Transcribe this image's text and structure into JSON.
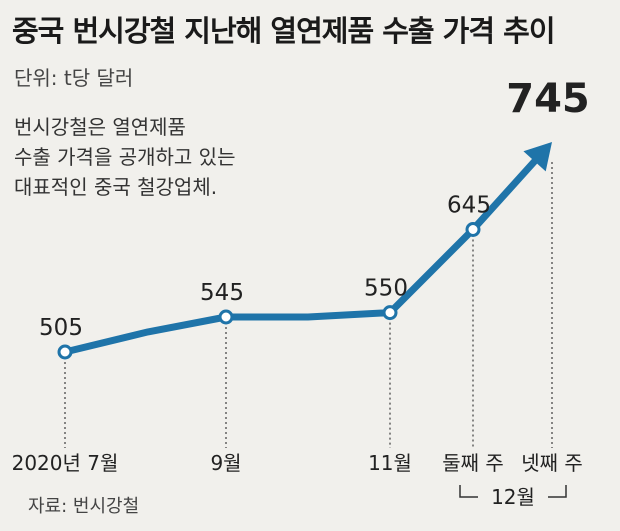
{
  "header": {
    "title": "중국 번시강철 지난해 열연제품 수출 가격 추이",
    "unit": "단위: t당 달러"
  },
  "note": {
    "lines": [
      "번시강철은 열연제품",
      "수출 가격을 공개하고 있는",
      "대표적인 중국 철강업체."
    ]
  },
  "footer": {
    "source": "자료: 번시강철"
  },
  "chart_data": {
    "type": "line",
    "title": "중국 번시강철 지난해 열연제품 수출 가격 추이",
    "unit": "t당 달러",
    "points": [
      {
        "label": "2020년 7월",
        "value": 505,
        "marked": true
      },
      {
        "label": "",
        "value": 528,
        "marked": false
      },
      {
        "label": "9월",
        "value": 545,
        "marked": true
      },
      {
        "label": "",
        "value": 545,
        "marked": false
      },
      {
        "label": "11월",
        "value": 550,
        "marked": true
      },
      {
        "label": "둘째 주",
        "value": 645,
        "marked": true
      },
      {
        "label": "넷째 주",
        "value": 745,
        "marked": true,
        "arrow": true
      }
    ],
    "group_label": "12월",
    "line_color": "#1f74a9"
  }
}
